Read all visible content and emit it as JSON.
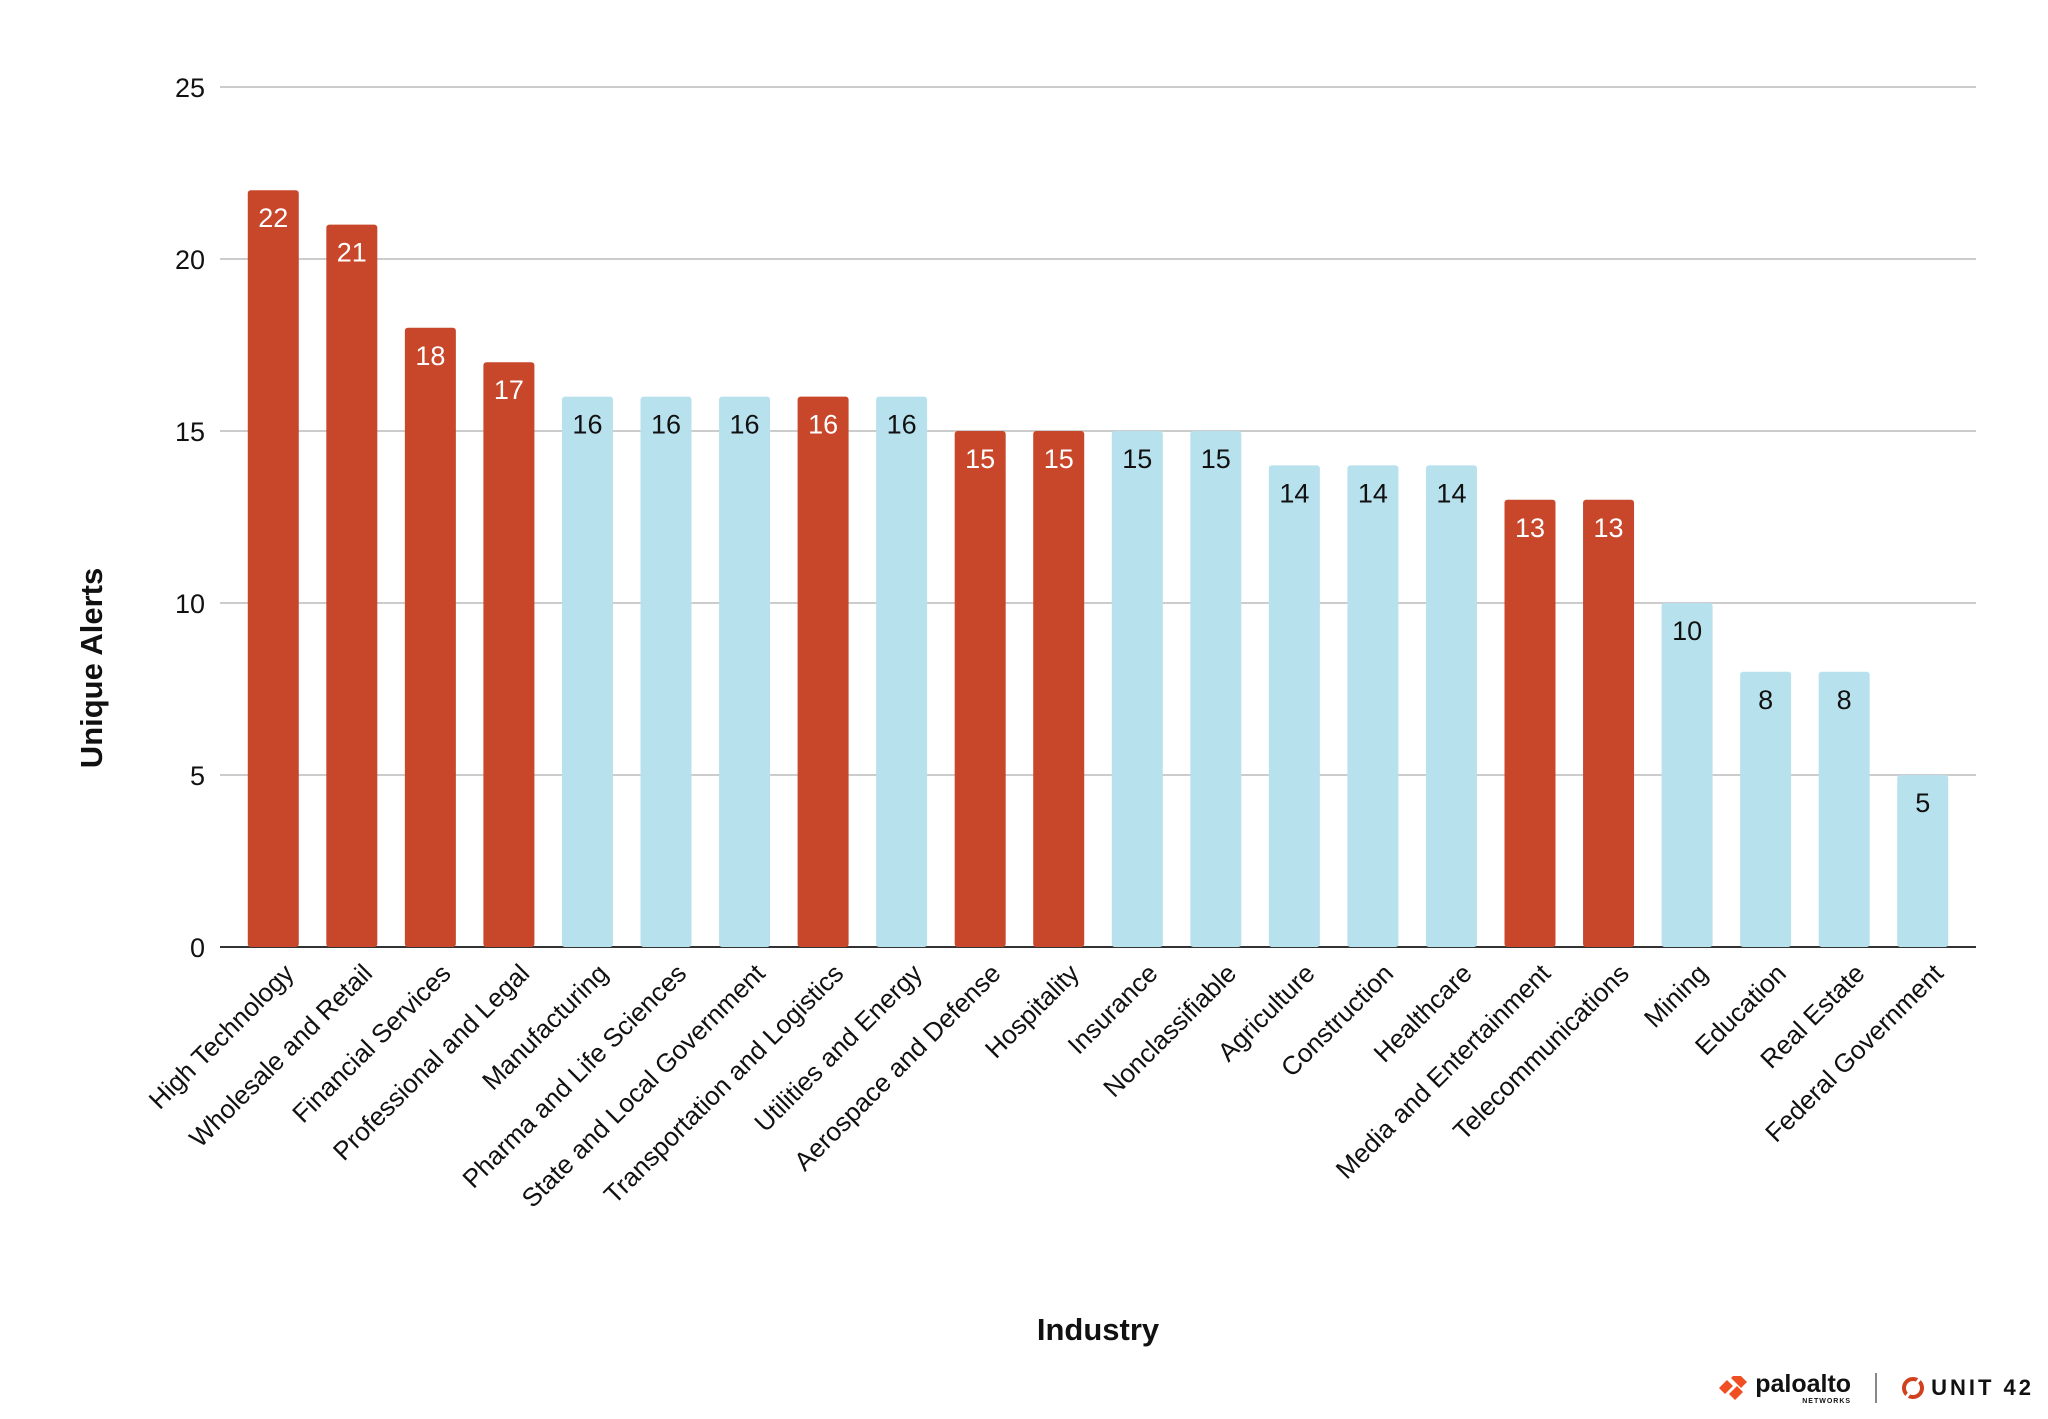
{
  "chart_data": {
    "type": "bar",
    "title": "",
    "xlabel": "Industry",
    "ylabel": "Unique Alerts",
    "ylim": [
      0,
      25
    ],
    "yticks": [
      0,
      5,
      10,
      15,
      20,
      25
    ],
    "grid": true,
    "categories": [
      "High Technology",
      "Wholesale and Retail",
      "Financial Services",
      "Professional and Legal",
      "Manufacturing",
      "Pharma and Life Sciences",
      "State and Local Government",
      "Transportation and Logistics",
      "Utilities and Energy",
      "Aerospace and Defense",
      "Hospitality",
      "Insurance",
      "Nonclassifiable",
      "Agriculture",
      "Construction",
      "Healthcare",
      "Media and Entertainment",
      "Telecommunications",
      "Mining",
      "Education",
      "Real Estate",
      "Federal Government"
    ],
    "values": [
      22,
      21,
      18,
      17,
      16,
      16,
      16,
      16,
      16,
      15,
      15,
      15,
      15,
      14,
      14,
      14,
      13,
      13,
      10,
      8,
      8,
      5
    ],
    "highlighted": [
      true,
      true,
      true,
      true,
      false,
      false,
      false,
      true,
      false,
      true,
      true,
      false,
      false,
      false,
      false,
      false,
      true,
      true,
      false,
      false,
      false,
      false
    ],
    "colors": {
      "highlight": "#C8472A",
      "normal": "#B7E1ED",
      "highlight_label": "#FFFFFF",
      "normal_label": "#111111"
    }
  },
  "branding": {
    "paloalto": "paloalto",
    "paloalto_sub": "NETWORKS",
    "unit42": "UNIT 42"
  }
}
